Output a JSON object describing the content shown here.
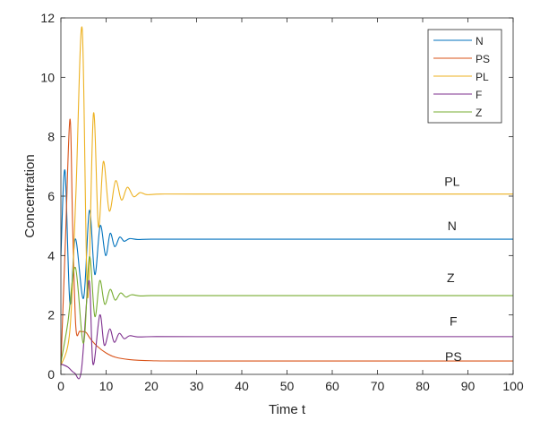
{
  "chart_data": {
    "type": "line",
    "title": "",
    "xlabel": "Time t",
    "ylabel": "Concentration",
    "xlim": [
      0,
      100
    ],
    "ylim": [
      0,
      12
    ],
    "xticks": [
      0,
      10,
      20,
      30,
      40,
      50,
      60,
      70,
      80,
      90,
      100
    ],
    "yticks": [
      0,
      2,
      4,
      6,
      8,
      10,
      12
    ],
    "grid": false,
    "legend_position": "top-right",
    "series": [
      {
        "name": "N",
        "color": "#0072BD",
        "points": [
          [
            0,
            4.0
          ],
          [
            0.9,
            6.87
          ],
          [
            2.0,
            2.4
          ],
          [
            3.2,
            4.56
          ],
          [
            5.0,
            2.56
          ],
          [
            6.3,
            5.52
          ],
          [
            7.5,
            3.36
          ],
          [
            8.7,
            5.01
          ],
          [
            9.9,
            4.0
          ],
          [
            10.9,
            4.75
          ],
          [
            11.9,
            4.3
          ],
          [
            13.0,
            4.62
          ],
          [
            14.0,
            4.48
          ],
          [
            15.2,
            4.57
          ],
          [
            17,
            4.54
          ],
          [
            20,
            4.55
          ],
          [
            30,
            4.55
          ],
          [
            100,
            4.55
          ]
        ]
      },
      {
        "name": "PS",
        "color": "#D95319",
        "points": [
          [
            0,
            0.3
          ],
          [
            1.0,
            4.5
          ],
          [
            2.0,
            8.59
          ],
          [
            2.6,
            5.0
          ],
          [
            3.3,
            1.6
          ],
          [
            4.2,
            1.45
          ],
          [
            5.5,
            1.42
          ],
          [
            6.5,
            1.2
          ],
          [
            8,
            0.95
          ],
          [
            10,
            0.72
          ],
          [
            12,
            0.58
          ],
          [
            15,
            0.5
          ],
          [
            20,
            0.46
          ],
          [
            30,
            0.45
          ],
          [
            100,
            0.45
          ]
        ]
      },
      {
        "name": "PL",
        "color": "#EDB120",
        "points": [
          [
            0,
            0.3
          ],
          [
            2.0,
            1.5
          ],
          [
            3.3,
            6.0
          ],
          [
            4.7,
            11.65
          ],
          [
            5.9,
            2.6
          ],
          [
            7.2,
            8.78
          ],
          [
            8.3,
            4.97
          ],
          [
            9.4,
            7.17
          ],
          [
            10.7,
            5.5
          ],
          [
            12.1,
            6.52
          ],
          [
            13.4,
            5.87
          ],
          [
            14.7,
            6.3
          ],
          [
            16.1,
            5.98
          ],
          [
            17.5,
            6.12
          ],
          [
            19,
            6.05
          ],
          [
            22,
            6.07
          ],
          [
            30,
            6.07
          ],
          [
            100,
            6.07
          ]
        ]
      },
      {
        "name": "F",
        "color": "#7E2F8E",
        "points": [
          [
            0,
            0.35
          ],
          [
            1.5,
            0.25
          ],
          [
            3.0,
            0.05
          ],
          [
            4.5,
            0.1
          ],
          [
            6.2,
            3.16
          ],
          [
            7.1,
            0.34
          ],
          [
            8.6,
            2.0
          ],
          [
            9.6,
            0.98
          ],
          [
            10.8,
            1.53
          ],
          [
            11.8,
            1.08
          ],
          [
            12.9,
            1.38
          ],
          [
            14.0,
            1.2
          ],
          [
            15.2,
            1.3
          ],
          [
            17,
            1.26
          ],
          [
            20,
            1.27
          ],
          [
            30,
            1.27
          ],
          [
            100,
            1.27
          ]
        ]
      },
      {
        "name": "Z",
        "color": "#77AC30",
        "points": [
          [
            0,
            0.4
          ],
          [
            1.5,
            1.7
          ],
          [
            3.2,
            3.6
          ],
          [
            5.0,
            1.05
          ],
          [
            6.3,
            3.96
          ],
          [
            7.5,
            1.95
          ],
          [
            8.6,
            3.16
          ],
          [
            9.7,
            2.36
          ],
          [
            10.9,
            2.86
          ],
          [
            12.0,
            2.5
          ],
          [
            13.2,
            2.74
          ],
          [
            14.4,
            2.6
          ],
          [
            15.6,
            2.68
          ],
          [
            17.5,
            2.64
          ],
          [
            20,
            2.65
          ],
          [
            30,
            2.65
          ],
          [
            100,
            2.65
          ]
        ]
      }
    ],
    "annotations": [
      {
        "text": "PL",
        "x": 86.5,
        "y": 6.5
      },
      {
        "text": "N",
        "x": 86.5,
        "y": 5.0
      },
      {
        "text": "Z",
        "x": 86.2,
        "y": 3.25
      },
      {
        "text": "F",
        "x": 86.8,
        "y": 1.8
      },
      {
        "text": "PS",
        "x": 86.8,
        "y": 0.6
      }
    ]
  }
}
